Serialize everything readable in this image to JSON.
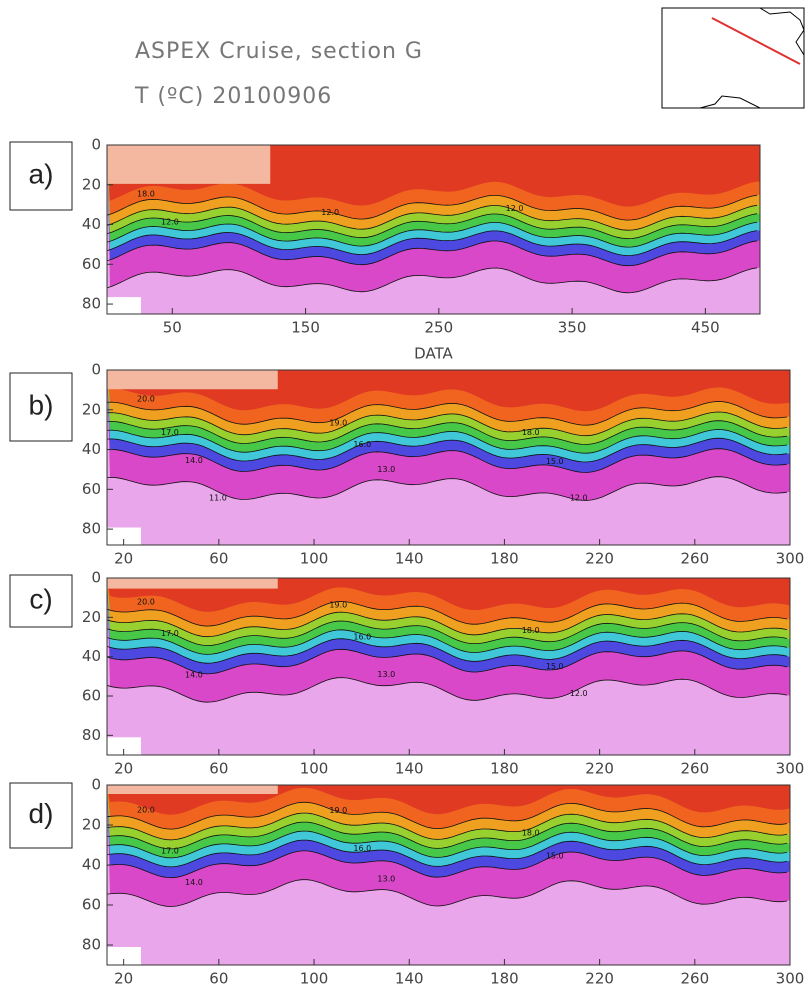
{
  "title": "ASPEX Cruise, section G",
  "subtitle": "T (ºC) 20100906",
  "chart_data": [
    {
      "type": "contour",
      "panel_label": "a)",
      "xlim": [
        1,
        491
      ],
      "ylim": [
        0,
        85
      ],
      "xticks": [
        50,
        150,
        250,
        350,
        450
      ],
      "yticks": [
        0,
        20,
        40,
        60,
        80
      ],
      "xlabel": "DATA",
      "contour_labels": [
        "18.0",
        "12.0",
        "12.0",
        "12.0"
      ]
    },
    {
      "type": "contour",
      "panel_label": "b)",
      "xlim": [
        13,
        300
      ],
      "ylim": [
        0,
        88
      ],
      "xticks": [
        20,
        60,
        100,
        140,
        180,
        220,
        260,
        300
      ],
      "yticks": [
        0,
        20,
        40,
        60,
        80
      ],
      "contour_labels": [
        "20.0",
        "19.0",
        "18.0",
        "17.0",
        "16.0",
        "15.0",
        "14.0",
        "13.0",
        "12.0",
        "11.0"
      ]
    },
    {
      "type": "contour",
      "panel_label": "c)",
      "xlim": [
        13,
        300
      ],
      "ylim": [
        0,
        90
      ],
      "xticks": [
        20,
        60,
        100,
        140,
        180,
        220,
        260,
        300
      ],
      "yticks": [
        0,
        20,
        40,
        60,
        80
      ],
      "contour_labels": [
        "20.0",
        "19.0",
        "18.0",
        "17.0",
        "16.0",
        "15.0",
        "14.0",
        "13.0",
        "12.0"
      ]
    },
    {
      "type": "contour",
      "panel_label": "d)",
      "xlim": [
        13,
        300
      ],
      "ylim": [
        0,
        90
      ],
      "xticks": [
        20,
        60,
        100,
        140,
        180,
        220,
        260,
        300
      ],
      "yticks": [
        0,
        20,
        40,
        60,
        80
      ],
      "contour_labels": [
        "20.0",
        "19.0",
        "18.0",
        "17.0",
        "16.0",
        "15.0",
        "14.0",
        "13.0"
      ]
    }
  ]
}
